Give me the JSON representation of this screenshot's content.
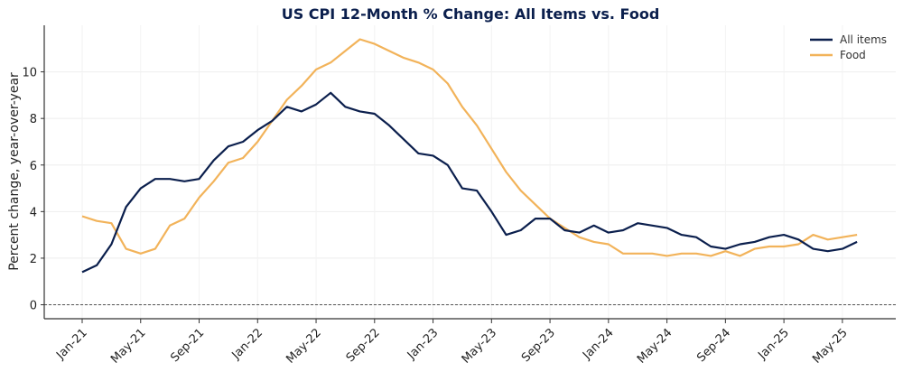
{
  "chart_data": {
    "type": "line",
    "title": "US CPI 12-Month % Change: All Items vs. Food",
    "xlabel": "",
    "ylabel": "Percent change, year-over-year",
    "ylim": [
      -0.6,
      12
    ],
    "yticks": [
      0,
      2,
      4,
      6,
      8,
      10
    ],
    "x_start": "Jan-21",
    "x_tick_labels": [
      "Jan-21",
      "May-21",
      "Sep-21",
      "Jan-22",
      "May-22",
      "Sep-22",
      "Jan-23",
      "May-23",
      "Sep-23",
      "Jan-24",
      "May-24",
      "Sep-24",
      "Jan-25",
      "May-25"
    ],
    "x_tick_step_months": 4,
    "reference_line": 0,
    "grid": true,
    "legend_position": "top-right",
    "series": [
      {
        "name": "All items",
        "color": "#0b1f4d",
        "values": [
          1.4,
          1.7,
          2.6,
          4.2,
          5.0,
          5.4,
          5.4,
          5.3,
          5.4,
          6.2,
          6.8,
          7.0,
          7.5,
          7.9,
          8.5,
          8.3,
          8.6,
          9.1,
          8.5,
          8.3,
          8.2,
          7.7,
          7.1,
          6.5,
          6.4,
          6.0,
          5.0,
          4.9,
          4.0,
          3.0,
          3.2,
          3.7,
          3.7,
          3.2,
          3.1,
          3.4,
          3.1,
          3.2,
          3.5,
          3.4,
          3.3,
          3.0,
          2.9,
          2.5,
          2.4,
          2.6,
          2.7,
          2.9,
          3.0,
          2.8,
          2.4,
          2.3,
          2.4,
          2.7
        ]
      },
      {
        "name": "Food",
        "color": "#f2b35a",
        "values": [
          3.8,
          3.6,
          3.5,
          2.4,
          2.2,
          2.4,
          3.4,
          3.7,
          4.6,
          5.3,
          6.1,
          6.3,
          7.0,
          7.9,
          8.8,
          9.4,
          10.1,
          10.4,
          10.9,
          11.4,
          11.2,
          10.9,
          10.6,
          10.4,
          10.1,
          9.5,
          8.5,
          7.7,
          6.7,
          5.7,
          4.9,
          4.3,
          3.7,
          3.3,
          2.9,
          2.7,
          2.6,
          2.2,
          2.2,
          2.2,
          2.1,
          2.2,
          2.2,
          2.1,
          2.3,
          2.1,
          2.4,
          2.5,
          2.5,
          2.6,
          3.0,
          2.8,
          2.9,
          3.0
        ]
      }
    ]
  }
}
